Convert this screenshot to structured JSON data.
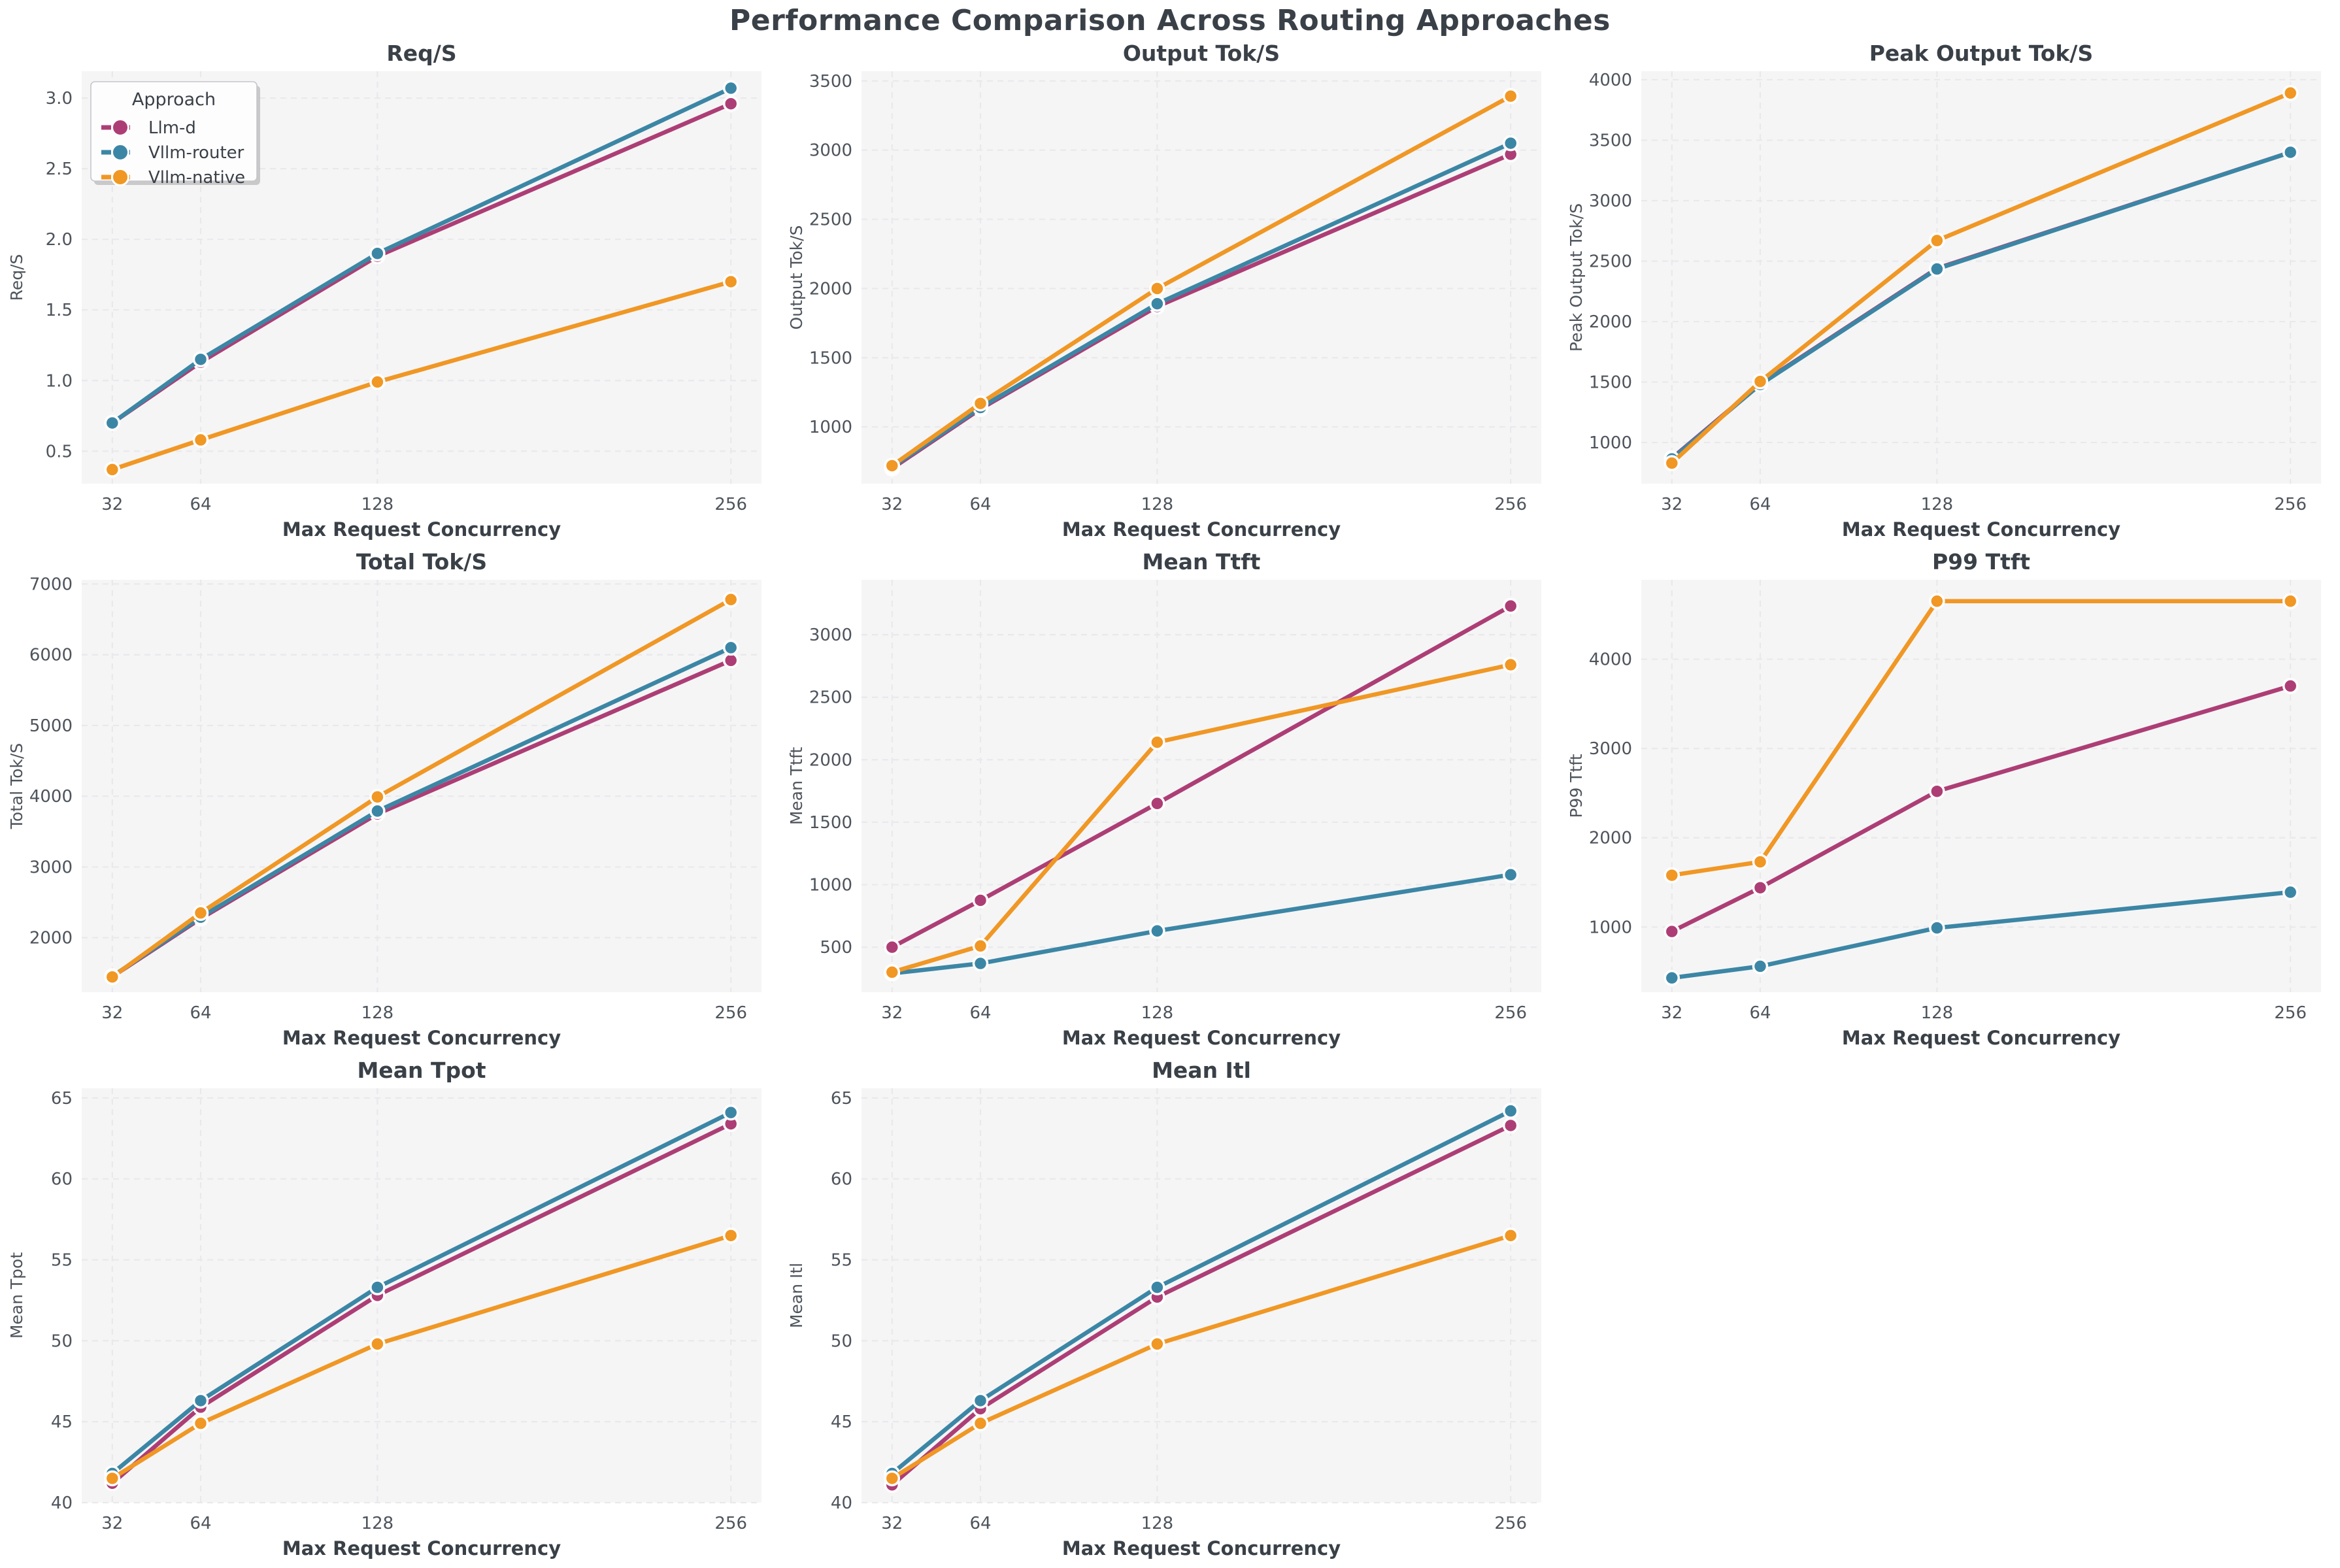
{
  "title": "Performance Comparison Across Routing Approaches",
  "x_label": "Max Request Concurrency",
  "categories": [
    32,
    64,
    128,
    256
  ],
  "legend": {
    "title": "Approach",
    "entries": [
      "Llm-d",
      "Vllm-router",
      "Vllm-native"
    ]
  },
  "colors": {
    "llm_d": "#ad3e75",
    "vllm_router": "#3c86a5",
    "vllm_native": "#f09724",
    "plot_bg": "#f5f5f6",
    "grid": "#e9e9ec",
    "heading": "#3a4047",
    "tick": "#4e545c",
    "legend_bg": "#fdfdfe",
    "legend_border": "#c6c6cc"
  },
  "chart_data": [
    {
      "type": "line",
      "title": "Req/S",
      "ylabel": "Req/S",
      "xlabel": "Max Request Concurrency",
      "legend": true,
      "x": [
        32,
        64,
        128,
        256
      ],
      "ylim": [
        0.27,
        3.19
      ],
      "yticks": [
        0.5,
        1.0,
        1.5,
        2.0,
        2.5,
        3.0
      ],
      "tick_decimals": 1,
      "series": [
        {
          "name": "Llm-d",
          "color": "llm_d",
          "values": [
            0.7,
            1.13,
            1.88,
            2.96
          ]
        },
        {
          "name": "Vllm-router",
          "color": "vllm_router",
          "values": [
            0.7,
            1.15,
            1.9,
            3.07
          ]
        },
        {
          "name": "Vllm-native",
          "color": "vllm_native",
          "values": [
            0.37,
            0.58,
            0.99,
            1.7
          ]
        }
      ]
    },
    {
      "type": "line",
      "title": "Output Tok/S",
      "ylabel": "Output Tok/S",
      "xlabel": "Max Request Concurrency",
      "legend": false,
      "x": [
        32,
        64,
        128,
        256
      ],
      "ylim": [
        590,
        3570
      ],
      "yticks": [
        1000,
        1500,
        2000,
        2500,
        3000,
        3500
      ],
      "tick_decimals": 0,
      "series": [
        {
          "name": "Llm-d",
          "color": "llm_d",
          "values": [
            700,
            1130,
            1870,
            2970
          ]
        },
        {
          "name": "Vllm-router",
          "color": "vllm_router",
          "values": [
            710,
            1140,
            1890,
            3050
          ]
        },
        {
          "name": "Vllm-native",
          "color": "vllm_native",
          "values": [
            720,
            1170,
            2000,
            3390
          ]
        }
      ]
    },
    {
      "type": "line",
      "title": "Peak Output Tok/S",
      "ylabel": "Peak Output Tok/S",
      "xlabel": "Max Request Concurrency",
      "legend": false,
      "x": [
        32,
        64,
        128,
        256
      ],
      "ylim": [
        660,
        4070
      ],
      "yticks": [
        1000,
        1500,
        2000,
        2500,
        3000,
        3500,
        4000
      ],
      "tick_decimals": 0,
      "series": [
        {
          "name": "Llm-d",
          "color": "llm_d",
          "values": [
            870,
            1485,
            2440,
            3400
          ]
        },
        {
          "name": "Vllm-router",
          "color": "vllm_router",
          "values": [
            865,
            1480,
            2435,
            3400
          ]
        },
        {
          "name": "Vllm-native",
          "color": "vllm_native",
          "values": [
            830,
            1505,
            2670,
            3890
          ]
        }
      ]
    },
    {
      "type": "line",
      "title": "Total Tok/S",
      "ylabel": "Total Tok/S",
      "xlabel": "Max Request Concurrency",
      "legend": false,
      "x": [
        32,
        64,
        128,
        256
      ],
      "ylim": [
        1230,
        7060
      ],
      "yticks": [
        2000,
        3000,
        4000,
        5000,
        6000,
        7000
      ],
      "tick_decimals": 0,
      "series": [
        {
          "name": "Llm-d",
          "color": "llm_d",
          "values": [
            1450,
            2270,
            3750,
            5920
          ]
        },
        {
          "name": "Vllm-router",
          "color": "vllm_router",
          "values": [
            1455,
            2290,
            3790,
            6100
          ]
        },
        {
          "name": "Vllm-native",
          "color": "vllm_native",
          "values": [
            1445,
            2350,
            3990,
            6780
          ]
        }
      ]
    },
    {
      "type": "line",
      "title": "Mean Ttft",
      "ylabel": "Mean Ttft",
      "xlabel": "Max Request Concurrency",
      "legend": false,
      "x": [
        32,
        64,
        128,
        256
      ],
      "ylim": [
        140,
        3440
      ],
      "yticks": [
        500,
        1000,
        1500,
        2000,
        2500,
        3000
      ],
      "tick_decimals": 0,
      "series": [
        {
          "name": "Llm-d",
          "color": "llm_d",
          "values": [
            500,
            875,
            1650,
            3230
          ]
        },
        {
          "name": "Vllm-router",
          "color": "vllm_router",
          "values": [
            290,
            370,
            630,
            1080
          ]
        },
        {
          "name": "Vllm-native",
          "color": "vllm_native",
          "values": [
            300,
            510,
            2140,
            2760
          ]
        }
      ]
    },
    {
      "type": "line",
      "title": "P99 Ttft",
      "ylabel": "P99 Ttft",
      "xlabel": "Max Request Concurrency",
      "legend": false,
      "x": [
        32,
        64,
        128,
        256
      ],
      "ylim": [
        270,
        4890
      ],
      "yticks": [
        1000,
        2000,
        3000,
        4000
      ],
      "tick_decimals": 0,
      "series": [
        {
          "name": "Llm-d",
          "color": "llm_d",
          "values": [
            950,
            1440,
            2520,
            3700
          ]
        },
        {
          "name": "Vllm-router",
          "color": "vllm_router",
          "values": [
            430,
            560,
            990,
            1390
          ]
        },
        {
          "name": "Vllm-native",
          "color": "vllm_native",
          "values": [
            1580,
            1730,
            4650,
            4650
          ]
        }
      ]
    },
    {
      "type": "line",
      "title": "Mean Tpot",
      "ylabel": "Mean Tpot",
      "xlabel": "Max Request Concurrency",
      "legend": false,
      "x": [
        32,
        64,
        128,
        256
      ],
      "ylim": [
        40,
        65.6
      ],
      "yticks": [
        40,
        45,
        50,
        55,
        60,
        65
      ],
      "tick_decimals": 0,
      "series": [
        {
          "name": "Llm-d",
          "color": "llm_d",
          "values": [
            41.2,
            45.9,
            52.8,
            63.4
          ]
        },
        {
          "name": "Vllm-router",
          "color": "vllm_router",
          "values": [
            41.8,
            46.3,
            53.3,
            64.1
          ]
        },
        {
          "name": "Vllm-native",
          "color": "vllm_native",
          "values": [
            41.5,
            44.9,
            49.8,
            56.5
          ]
        }
      ]
    },
    {
      "type": "line",
      "title": "Mean Itl",
      "ylabel": "Mean Itl",
      "xlabel": "Max Request Concurrency",
      "legend": false,
      "x": [
        32,
        64,
        128,
        256
      ],
      "ylim": [
        40,
        65.6
      ],
      "yticks": [
        40,
        45,
        50,
        55,
        60,
        65
      ],
      "tick_decimals": 0,
      "series": [
        {
          "name": "Llm-d",
          "color": "llm_d",
          "values": [
            41.1,
            45.8,
            52.7,
            63.3
          ]
        },
        {
          "name": "Vllm-router",
          "color": "vllm_router",
          "values": [
            41.8,
            46.3,
            53.3,
            64.2
          ]
        },
        {
          "name": "Vllm-native",
          "color": "vllm_native",
          "values": [
            41.5,
            44.9,
            49.8,
            56.5
          ]
        }
      ]
    }
  ]
}
